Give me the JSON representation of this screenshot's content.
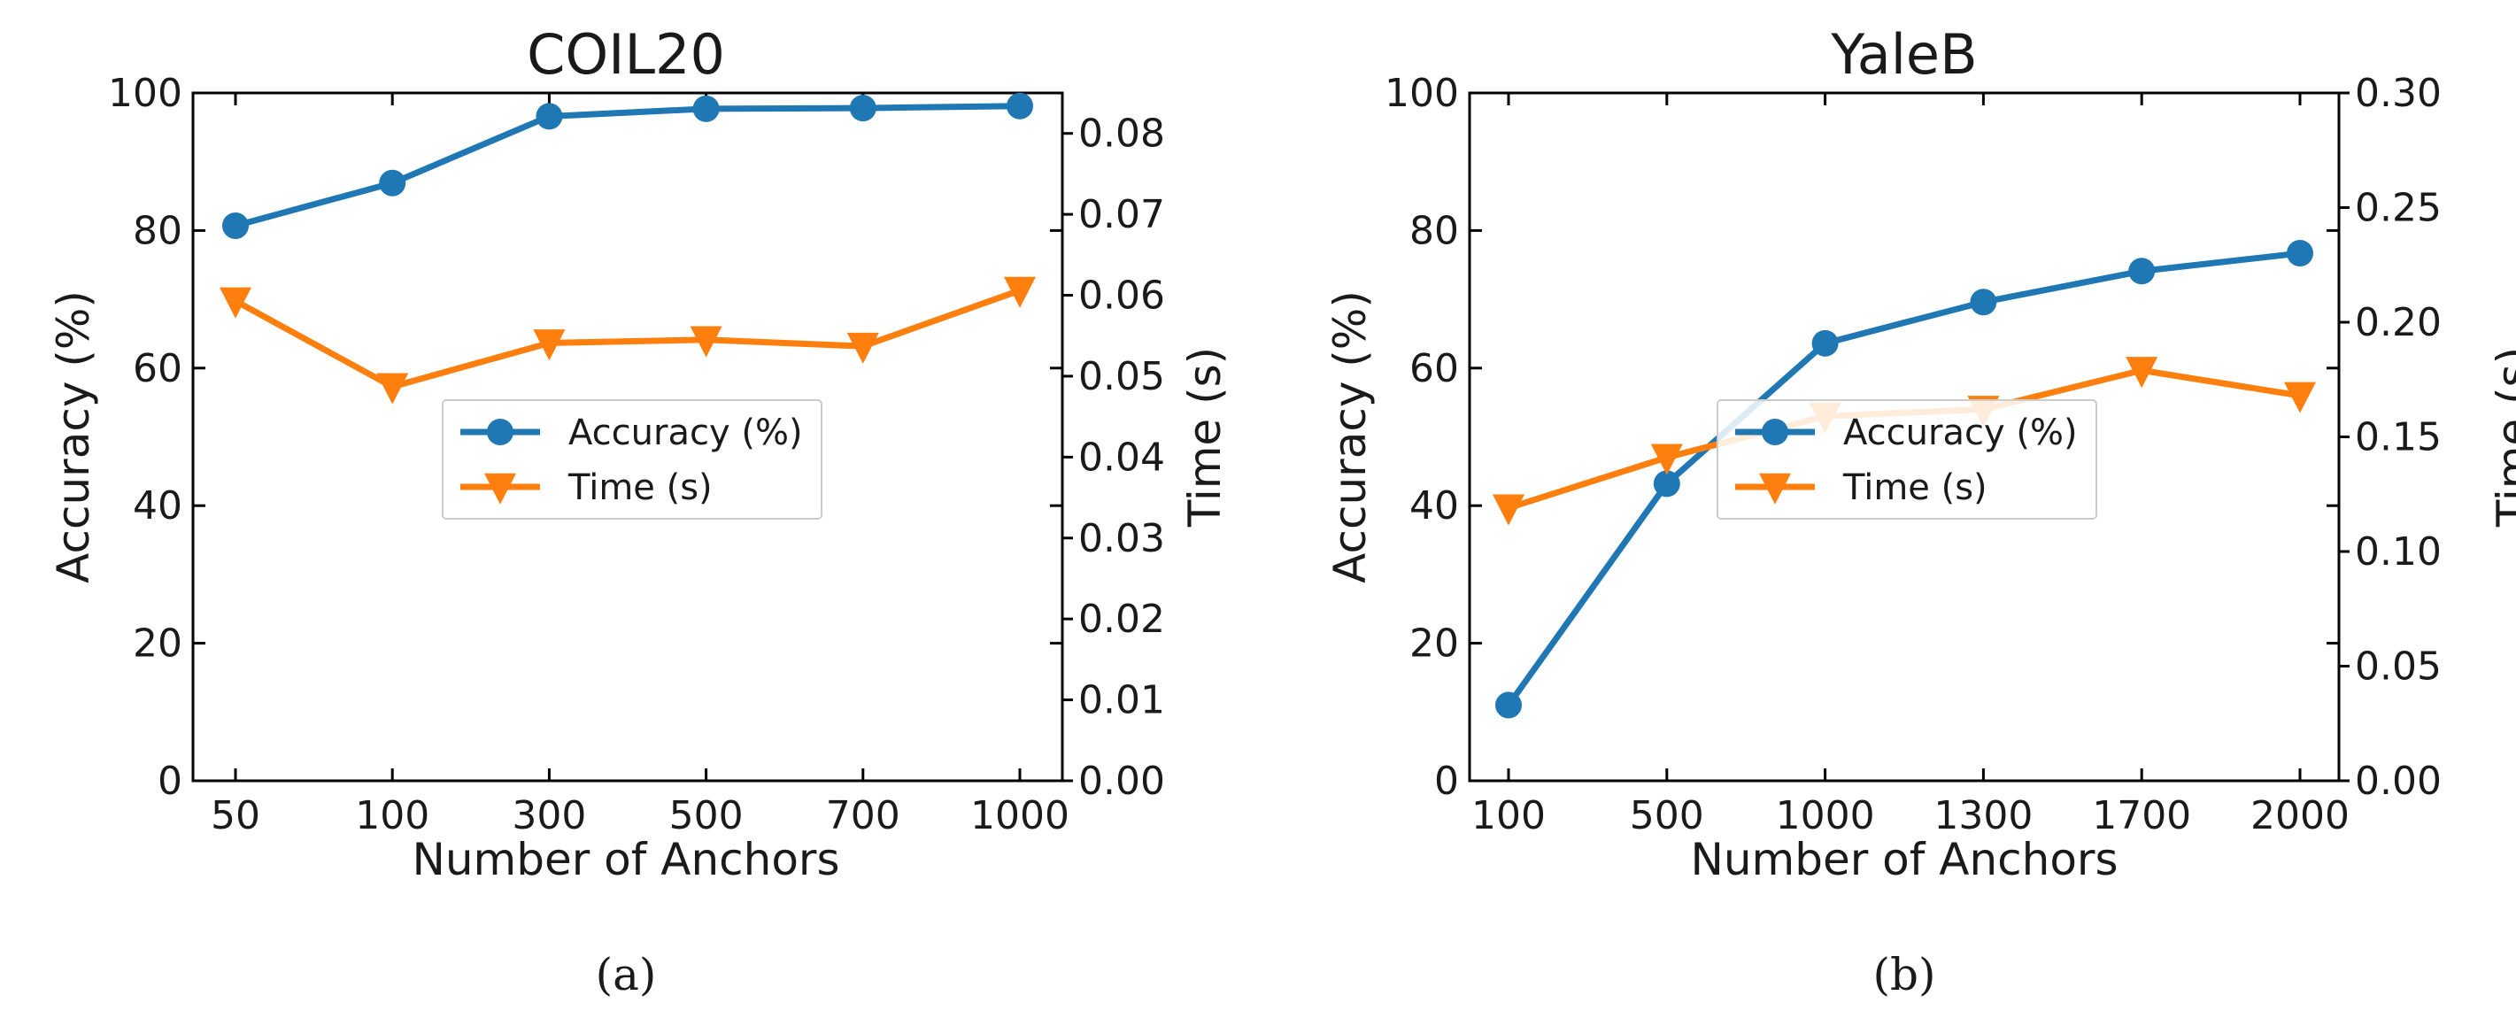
{
  "chart_data": [
    {
      "type": "line",
      "panel": "(a)",
      "title": "COIL20",
      "xlabel": "Number of Anchors",
      "ylabel": "Accuracy (%)",
      "y2label": "Time (s)",
      "categories": [
        "50",
        "100",
        "300",
        "500",
        "700",
        "1000"
      ],
      "ylim": [
        0,
        100
      ],
      "yticks": [
        "0",
        "20",
        "40",
        "60",
        "80",
        "100"
      ],
      "y2lim": [
        0,
        0.085
      ],
      "y2ticks": [
        "0.00",
        "0.01",
        "0.02",
        "0.03",
        "0.04",
        "0.05",
        "0.06",
        "0.07",
        "0.08"
      ],
      "legend_position": "center-right",
      "series": [
        {
          "name": "Accuracy (%)",
          "axis": "left",
          "marker": "circle",
          "color": "#1f77b4",
          "values": [
            80.7,
            86.9,
            96.6,
            97.7,
            97.8,
            98.1
          ]
        },
        {
          "name": "Time (s)",
          "axis": "right",
          "marker": "triangle-down",
          "color": "#ff7f0e",
          "values": [
            0.0593,
            0.0487,
            0.0541,
            0.0545,
            0.0537,
            0.0606
          ]
        }
      ]
    },
    {
      "type": "line",
      "panel": "(b)",
      "title": "YaleB",
      "xlabel": "Number of Anchors",
      "ylabel": "Accuracy (%)",
      "y2label": "Time (s)",
      "categories": [
        "100",
        "500",
        "1000",
        "1300",
        "1700",
        "2000"
      ],
      "ylim": [
        0,
        100
      ],
      "yticks": [
        "0",
        "20",
        "40",
        "60",
        "80",
        "100"
      ],
      "y2lim": [
        0,
        0.3
      ],
      "y2ticks": [
        "0.00",
        "0.05",
        "0.10",
        "0.15",
        "0.20",
        "0.25",
        "0.30"
      ],
      "legend_position": "center",
      "series": [
        {
          "name": "Accuracy (%)",
          "axis": "left",
          "marker": "circle",
          "color": "#1f77b4",
          "values": [
            11.0,
            43.2,
            63.6,
            69.6,
            74.1,
            76.7
          ]
        },
        {
          "name": "Time (s)",
          "axis": "right",
          "marker": "triangle-down",
          "color": "#ff7f0e",
          "values": [
            0.119,
            0.141,
            0.159,
            0.162,
            0.179,
            0.168
          ]
        }
      ]
    }
  ]
}
